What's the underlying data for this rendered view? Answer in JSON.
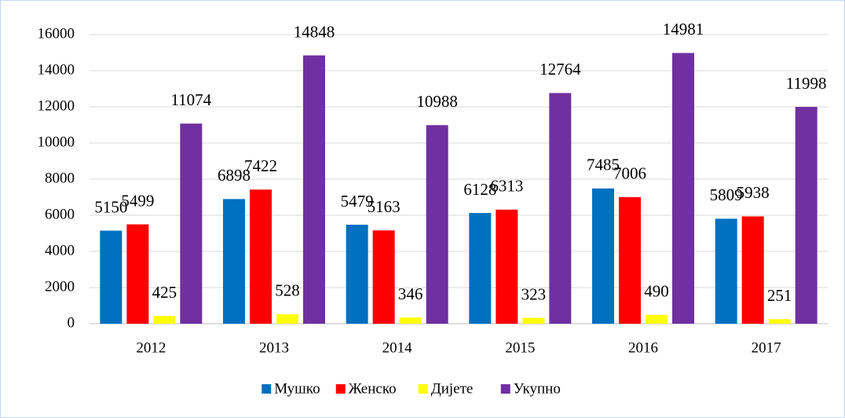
{
  "chart_data": {
    "type": "bar",
    "categories": [
      "2012",
      "2013",
      "2014",
      "2015",
      "2016",
      "2017"
    ],
    "series": [
      {
        "name": "Мушко",
        "color": "#0070c0",
        "values": [
          5150,
          6898,
          5479,
          6128,
          7485,
          5809
        ]
      },
      {
        "name": "Женско",
        "color": "#ff0000",
        "values": [
          5499,
          7422,
          5163,
          6313,
          7006,
          5938
        ]
      },
      {
        "name": "Дијете",
        "color": "#ffff00",
        "values": [
          425,
          528,
          346,
          323,
          490,
          251
        ]
      },
      {
        "name": "Укупно",
        "color": "#7030a0",
        "values": [
          11074,
          14848,
          10988,
          12764,
          14981,
          11998
        ]
      }
    ],
    "ylim": [
      0,
      16000
    ],
    "yticks": [
      0,
      2000,
      4000,
      6000,
      8000,
      10000,
      12000,
      14000,
      16000
    ],
    "grid": true,
    "legend": "bottom"
  }
}
